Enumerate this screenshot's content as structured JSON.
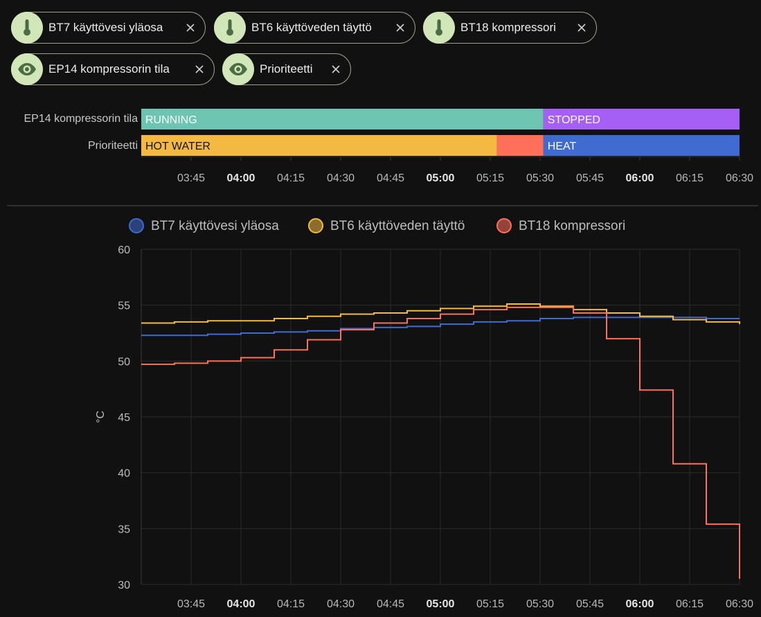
{
  "chips": [
    {
      "label": "BT7 käyttövesi yläosa",
      "icon": "thermometer-icon",
      "name": "chip-bt7"
    },
    {
      "label": "BT6 käyttöveden täyttö",
      "icon": "thermometer-icon",
      "name": "chip-bt6"
    },
    {
      "label": "BT18 kompressori",
      "icon": "thermometer-icon",
      "name": "chip-bt18"
    },
    {
      "label": "EP14 kompressorin tila",
      "icon": "eye-icon",
      "name": "chip-ep14"
    },
    {
      "label": "Prioriteetti",
      "icon": "eye-icon",
      "name": "chip-prioriteetti"
    }
  ],
  "timeline": {
    "rows": [
      {
        "label": "EP14 kompressorin tila",
        "segments": [
          {
            "label": "RUNNING",
            "start": "03:30",
            "end": "05:31",
            "color": "#6cc5b0"
          },
          {
            "label": "STOPPED",
            "start": "05:31",
            "end": "06:30",
            "color": "#a55ff5"
          }
        ]
      },
      {
        "label": "Prioriteetti",
        "segments": [
          {
            "label": "HOT WATER",
            "start": "03:30",
            "end": "05:17",
            "color": "#f3b943"
          },
          {
            "label": "",
            "start": "05:17",
            "end": "05:31",
            "color": "#ff6f59"
          },
          {
            "label": "HEAT",
            "start": "05:31",
            "end": "06:30",
            "color": "#3f6bd1"
          }
        ]
      }
    ],
    "ticks": [
      {
        "label": "03:45",
        "bold": false
      },
      {
        "label": "04:00",
        "bold": true
      },
      {
        "label": "04:15",
        "bold": false
      },
      {
        "label": "04:30",
        "bold": false
      },
      {
        "label": "04:45",
        "bold": false
      },
      {
        "label": "05:00",
        "bold": true
      },
      {
        "label": "05:15",
        "bold": false
      },
      {
        "label": "05:30",
        "bold": false
      },
      {
        "label": "05:45",
        "bold": false
      },
      {
        "label": "06:00",
        "bold": true
      },
      {
        "label": "06:15",
        "bold": false
      },
      {
        "label": "06:30",
        "bold": false
      }
    ]
  },
  "chart_data": {
    "type": "line",
    "step": true,
    "ylabel": "°C",
    "ylim": [
      30,
      60
    ],
    "yticks": [
      30,
      35,
      40,
      45,
      50,
      55,
      60
    ],
    "xlim": [
      "03:30",
      "06:30"
    ],
    "grid": true,
    "legend": "top",
    "x": [
      "03:30",
      "03:40",
      "03:50",
      "04:00",
      "04:10",
      "04:20",
      "04:30",
      "04:40",
      "04:50",
      "05:00",
      "05:10",
      "05:20",
      "05:30",
      "05:40",
      "05:50",
      "06:00",
      "06:10",
      "06:20",
      "06:30"
    ],
    "series": [
      {
        "name": "BT7 käyttövesi yläosa",
        "color": "#3f6bd1",
        "values": [
          52.3,
          52.3,
          52.4,
          52.5,
          52.6,
          52.7,
          52.9,
          53.0,
          53.1,
          53.3,
          53.5,
          53.6,
          53.8,
          53.9,
          53.9,
          53.9,
          53.9,
          53.8,
          53.8
        ]
      },
      {
        "name": "BT6 käyttöveden täyttö",
        "color": "#f3b943",
        "values": [
          53.4,
          53.5,
          53.6,
          53.6,
          53.8,
          54.0,
          54.2,
          54.3,
          54.5,
          54.7,
          54.9,
          55.1,
          54.9,
          54.6,
          54.3,
          54.0,
          53.7,
          53.5,
          53.3
        ]
      },
      {
        "name": "BT18 kompressori",
        "color": "#ff6f59",
        "values": [
          49.7,
          49.8,
          50.0,
          50.3,
          51.0,
          51.9,
          52.8,
          53.4,
          53.8,
          54.2,
          54.6,
          54.8,
          54.8,
          54.3,
          52.0,
          47.4,
          40.8,
          35.4,
          30.5
        ]
      }
    ]
  }
}
